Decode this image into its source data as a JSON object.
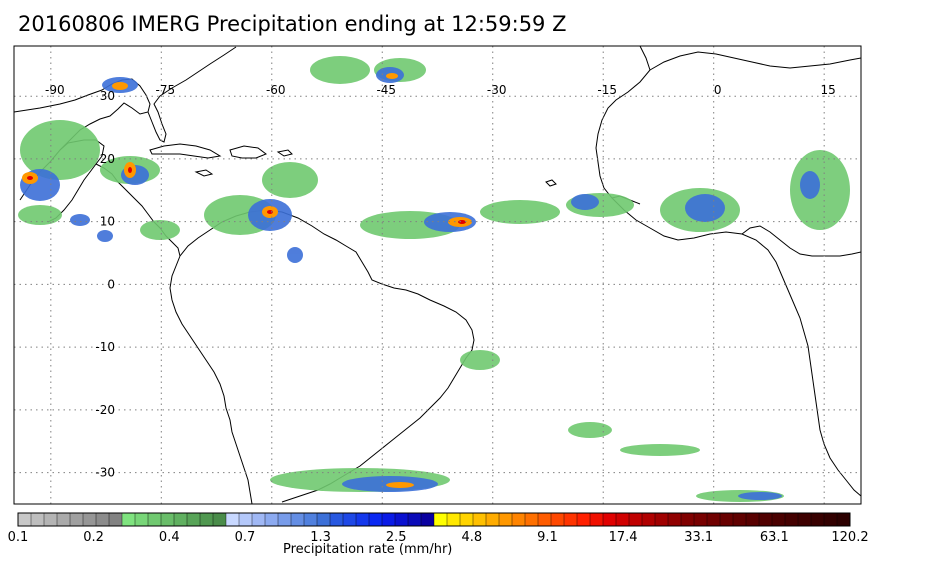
{
  "title": "20160806 IMERG Precipitation ending at 12:59:59 Z",
  "map": {
    "lon_range": [
      -95,
      20
    ],
    "lat_range": [
      -35,
      38
    ],
    "lon_ticks": [
      -90,
      -75,
      -60,
      -45,
      -30,
      -15,
      0,
      15
    ],
    "lon_tick_labels": [
      "-90",
      "-75",
      "-60",
      "-45",
      "-30",
      "-15",
      "0",
      "15"
    ],
    "lat_ticks": [
      30,
      20,
      10,
      0,
      -10,
      -20,
      -30
    ],
    "lat_tick_labels": [
      "30",
      "20",
      "10",
      "0",
      "-10",
      "-20",
      "-30"
    ],
    "gridlines": true,
    "gridline_style": "dotted"
  },
  "colorbar": {
    "title": "Precipitation rate (mm/hr)",
    "tick_labels": [
      "0.1",
      "0.2",
      "0.4",
      "0.7",
      "1.3",
      "2.5",
      "4.8",
      "9.1",
      "17.4",
      "33.1",
      "63.1",
      "120.2"
    ],
    "colors": [
      "#c8c8c8",
      "#bebebe",
      "#b4b4b4",
      "#aaaaaa",
      "#a0a0a0",
      "#969696",
      "#8c8c8c",
      "#828282",
      "#7fe37f",
      "#78d678",
      "#70c970",
      "#69bd69",
      "#60b060",
      "#58a458",
      "#509850",
      "#4a8c4a",
      "#c8d8ff",
      "#b4c8fa",
      "#a0b8f5",
      "#8caaf0",
      "#789cea",
      "#648ee4",
      "#5080de",
      "#3c70d8",
      "#2858e0",
      "#1e48e6",
      "#1438ec",
      "#0a28f2",
      "#0a1ae6",
      "#0a10d0",
      "#0a0ab8",
      "#0a00a0",
      "#ffff00",
      "#ffe800",
      "#ffd400",
      "#ffc000",
      "#ffac00",
      "#ff9800",
      "#ff8400",
      "#ff7000",
      "#ff5c00",
      "#ff4800",
      "#ff3400",
      "#ff2000",
      "#f01000",
      "#e00000",
      "#d00000",
      "#c00000",
      "#b00000",
      "#a00000",
      "#900000",
      "#800000",
      "#780000",
      "#700000",
      "#680000",
      "#600000",
      "#580000",
      "#500000",
      "#4a0000",
      "#440000",
      "#3e0000",
      "#380000",
      "#320000",
      "#2c0000"
    ]
  }
}
